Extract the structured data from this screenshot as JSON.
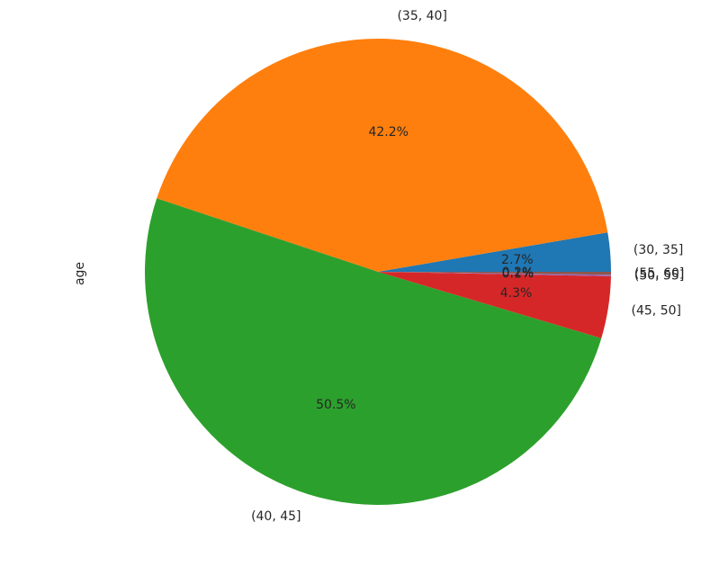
{
  "chart_data": {
    "type": "pie",
    "title": "",
    "ylabel": "age",
    "legend": "none",
    "start_angle_deg": 0,
    "direction": "counterclockwise",
    "slices": [
      {
        "label": "(30, 35]",
        "value": 2.7,
        "pct_label": "2.7%",
        "color": "#1f77b4"
      },
      {
        "label": "(35, 40]",
        "value": 42.2,
        "pct_label": "42.2%",
        "color": "#ff7f0e"
      },
      {
        "label": "(40, 45]",
        "value": 50.5,
        "pct_label": "50.5%",
        "color": "#2ca02c"
      },
      {
        "label": "(45, 50]",
        "value": 4.3,
        "pct_label": "4.3%",
        "color": "#d62728"
      },
      {
        "label": "(50, 55]",
        "value": 0.1,
        "pct_label": "0.1%",
        "color": "#9467bd"
      },
      {
        "label": "(55, 60]",
        "value": 0.2,
        "pct_label": "0.2%",
        "color": "#8c564b"
      }
    ]
  }
}
